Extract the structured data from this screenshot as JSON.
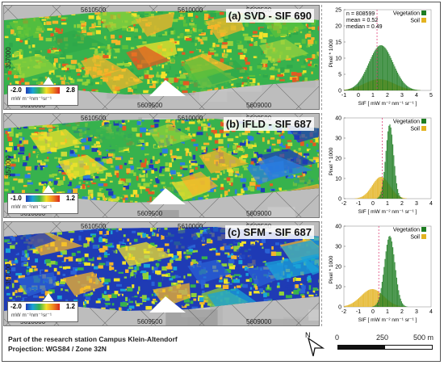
{
  "panels": [
    {
      "title": "(a) SVD - SIF 690",
      "top_ticks": [
        "5610500",
        "5610000",
        "5609500"
      ],
      "bottom_ticks": [
        "5610000",
        "5609500",
        "5609000"
      ],
      "left_tick": "357000",
      "legend_min": "-2.0",
      "legend_max": "2.8",
      "legend_unit": "mW m⁻²nm⁻¹sr⁻¹",
      "hist": {
        "ylabel": "Pixel * 1000",
        "xlabel": "SIF [ mW m⁻² nm⁻¹ sr⁻¹ ]",
        "yticks": [
          "0",
          "5",
          "10",
          "15",
          "20",
          "25"
        ],
        "xticks": [
          "-1",
          "0",
          "1",
          "2",
          "3",
          "4",
          "5"
        ],
        "legend": [
          "Vegetation",
          "Soil"
        ],
        "stats": [
          "n = 808599",
          "mean = 0.52",
          "median = 0.49"
        ]
      }
    },
    {
      "title": "(b) iFLD - SIF 687",
      "top_ticks": [
        "5610500",
        "5610000",
        "5609500"
      ],
      "bottom_ticks": [
        "5610000",
        "5609500",
        "5609000"
      ],
      "left_tick": "357000",
      "legend_min": "-1.0",
      "legend_max": "1.2",
      "legend_unit": "mW m⁻²nm⁻¹sr⁻¹",
      "hist": {
        "ylabel": "Pixel * 1000",
        "xlabel": "SIF [ mW m⁻² nm⁻¹ sr⁻¹ ]",
        "yticks": [
          "0",
          "10",
          "20",
          "30",
          "40"
        ],
        "xticks": [
          "-2",
          "-1",
          "0",
          "1",
          "2",
          "3",
          "4"
        ],
        "legend": [
          "Vegetation",
          "Soil"
        ],
        "stats": []
      }
    },
    {
      "title": "(c) SFM - SIF 687",
      "top_ticks": [
        "5610500",
        "5610000",
        "5609500"
      ],
      "bottom_ticks": [
        "5610000",
        "5609500",
        "5609000"
      ],
      "left_tick": "357000",
      "legend_min": "-2.0",
      "legend_max": "1.2",
      "legend_unit": "mW m⁻²nm⁻¹sr⁻¹",
      "hist": {
        "ylabel": "Pixel * 1000",
        "xlabel": "SIF [ mW m⁻² nm⁻¹ sr⁻¹ ]",
        "yticks": [
          "0",
          "10",
          "20",
          "30",
          "40"
        ],
        "xticks": [
          "-2",
          "-1",
          "0",
          "1",
          "2",
          "3",
          "4"
        ],
        "legend": [
          "Vegetation",
          "Soil"
        ],
        "stats": []
      }
    }
  ],
  "footer": {
    "line1": "Part of the research station Campus Klein-Altendorf",
    "line2": "Projection: WGS84 / Zone 32N",
    "north_label": "N",
    "scale_labels": [
      "0",
      "250",
      "500 m"
    ]
  },
  "colors": {
    "vegetation": "#1e7d22",
    "soil": "#e3b320",
    "median_line": "#e0457b"
  }
}
